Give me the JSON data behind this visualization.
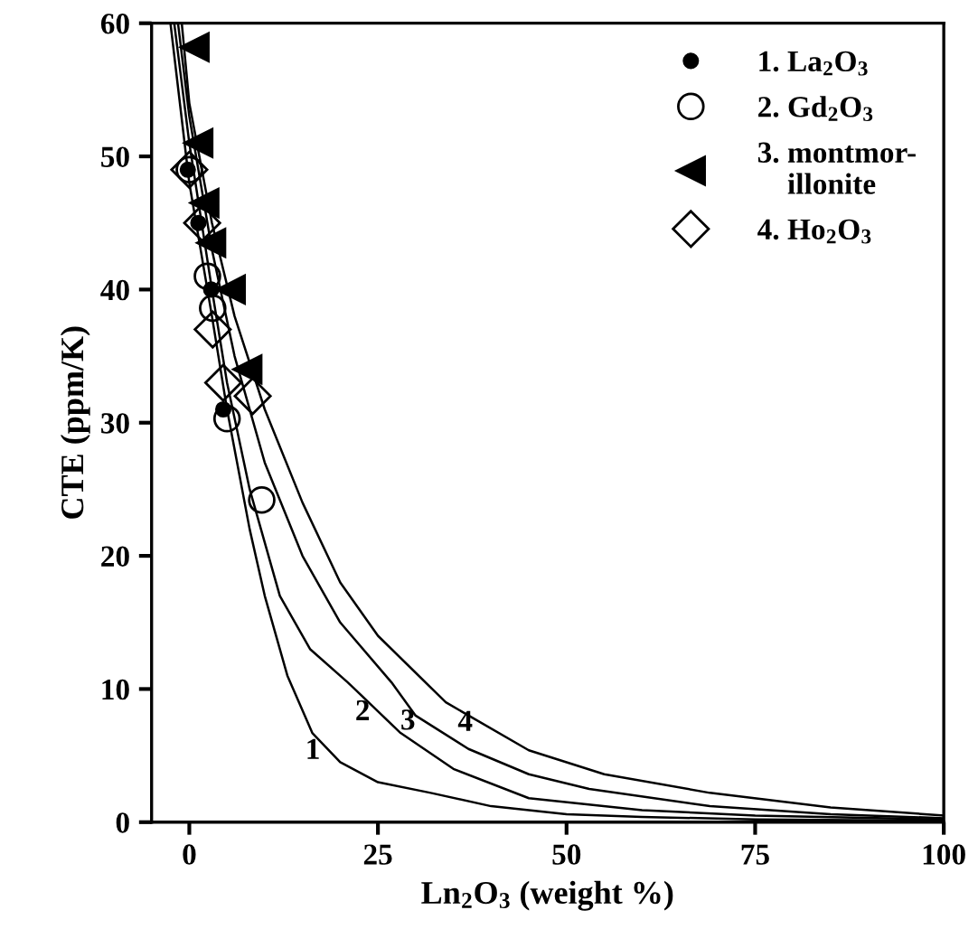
{
  "chart_data": {
    "type": "scatter",
    "xlabel": "Ln$_{2}$O$_{3}$ (weight %)",
    "ylabel": "CTE (ppm/K)",
    "xlim": [
      -5,
      100
    ],
    "ylim": [
      0,
      60
    ],
    "xticks": [
      0,
      25,
      50,
      75,
      100
    ],
    "yticks": [
      0,
      10,
      20,
      30,
      40,
      50,
      60
    ],
    "grid": false,
    "legend": "top right",
    "series": [
      {
        "name": "1. La$_{2}$O$_{3}$",
        "marker": "circle",
        "color": "#000000",
        "x": [
          -0.2,
          1.2,
          2.9,
          4.5
        ],
        "values": [
          49,
          45,
          40,
          31
        ]
      },
      {
        "name": "2. Gd$_{2}$O$_{3}$",
        "marker": "circle",
        "color": "#000000",
        "x": [
          0,
          2.4,
          3.1,
          5,
          9.6
        ],
        "values": [
          49,
          41,
          38.6,
          30.3,
          24.2
        ]
      },
      {
        "name": "3. montmor-\n    illonite",
        "marker": "triangle",
        "color": "#000000",
        "x": [
          0.7,
          1.2,
          2,
          2.9,
          5.5,
          7.7
        ],
        "values": [
          58.2,
          51,
          46.5,
          43.5,
          40,
          34
        ]
      },
      {
        "name": "4. Ho$_{2}$O$_{3}$",
        "marker": "diamond",
        "color": "#000000",
        "x": [
          0,
          1.7,
          3.1,
          4.5,
          8.4
        ],
        "values": [
          49,
          45,
          37,
          33,
          32
        ]
      },
      {
        "type": "line",
        "marker": "none",
        "color": "#000000",
        "x": [
          -2.5,
          0,
          3,
          5,
          8,
          10,
          13,
          16.3,
          20,
          25,
          32,
          40,
          50,
          60,
          75,
          100
        ],
        "values": [
          60,
          48,
          38,
          31,
          22,
          17,
          11,
          6.7,
          4.5,
          3,
          2.2,
          1.2,
          0.6,
          0.4,
          0.2,
          0.1
        ]
      },
      {
        "type": "line",
        "marker": "none",
        "color": "#000000",
        "x": [
          -2,
          0,
          3,
          5,
          8,
          12,
          16,
          21,
          28,
          35,
          45,
          60,
          75,
          100
        ],
        "values": [
          60,
          51,
          40,
          33,
          25,
          17,
          13,
          10.5,
          6.7,
          4,
          1.8,
          0.9,
          0.5,
          0.2
        ]
      },
      {
        "type": "line",
        "marker": "none",
        "color": "#000000",
        "x": [
          -1.5,
          0,
          3,
          6,
          10,
          15,
          20,
          26.8,
          30,
          37,
          45,
          53,
          69,
          85,
          100
        ],
        "values": [
          60,
          53,
          43,
          35,
          27,
          20,
          15,
          10.5,
          8,
          5.5,
          3.6,
          2.5,
          1.2,
          0.6,
          0.3
        ]
      },
      {
        "type": "line",
        "marker": "none",
        "color": "#000000",
        "x": [
          -1,
          0,
          3,
          6,
          10,
          15,
          20,
          25,
          34,
          45,
          55,
          69,
          85,
          100
        ],
        "values": [
          60,
          54,
          45,
          38,
          31,
          24,
          18,
          14,
          9,
          5.4,
          3.6,
          2.2,
          1.1,
          0.5
        ]
      }
    ],
    "annotations": [
      {
        "text": "1",
        "x": 18.7,
        "y": 5.3
      },
      {
        "text": "2",
        "x": 25.3,
        "y": 8.2
      },
      {
        "text": "3",
        "x": 31.3,
        "y": 7.5
      },
      {
        "text": "4",
        "x": 38.9,
        "y": 7.4
      }
    ]
  }
}
